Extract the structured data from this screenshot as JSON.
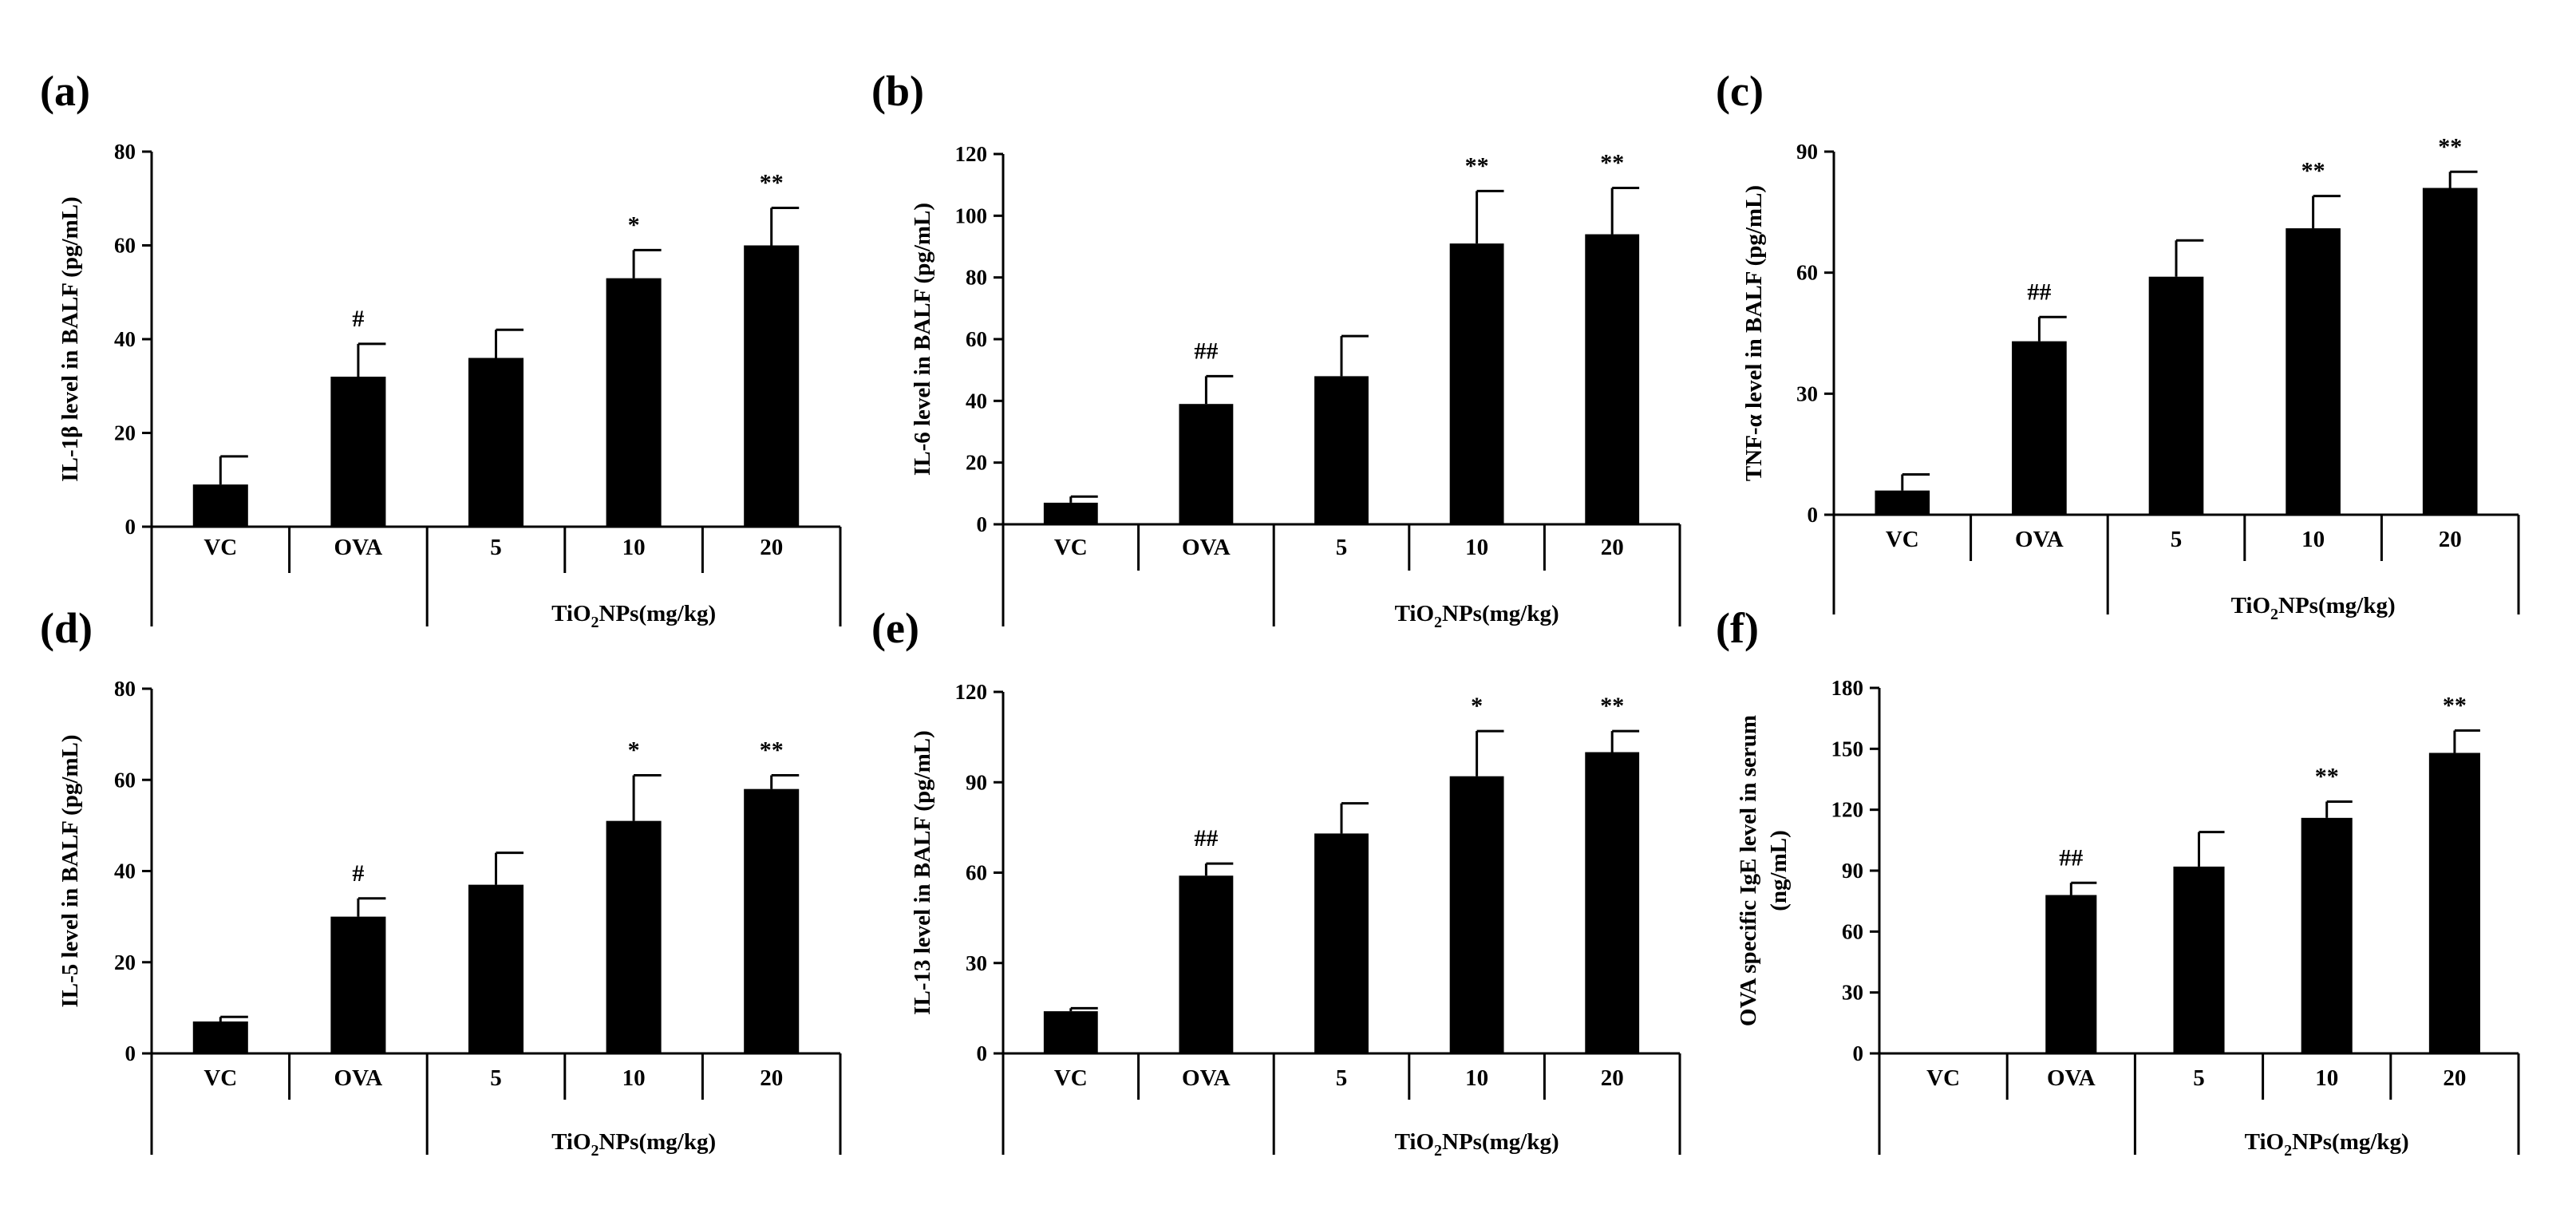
{
  "chart_data": [
    {
      "panel": "(a)",
      "type": "bar",
      "ylabel": "IL-1β level in BALF (pg/mL)",
      "categories": [
        "VC",
        "OVA",
        "5",
        "10",
        "20"
      ],
      "values": [
        9,
        32,
        36,
        53,
        60
      ],
      "errors": [
        6,
        7,
        6,
        6,
        8
      ],
      "significance": [
        "",
        "#",
        "",
        "*",
        "**"
      ],
      "ylim": [
        0,
        80
      ],
      "yticks": [
        0,
        20,
        40,
        60,
        80
      ],
      "group_label": "TiO₂NPs(mg/kg)"
    },
    {
      "panel": "(b)",
      "type": "bar",
      "ylabel": "IL-6 level in BALF (pg/mL)",
      "categories": [
        "VC",
        "OVA",
        "5",
        "10",
        "20"
      ],
      "values": [
        7,
        39,
        48,
        91,
        94
      ],
      "errors": [
        2,
        9,
        13,
        17,
        15
      ],
      "significance": [
        "",
        "##",
        "",
        "**",
        "**"
      ],
      "ylim": [
        0,
        120
      ],
      "yticks": [
        0,
        20,
        40,
        60,
        80,
        100,
        120
      ],
      "group_label": "TiO₂NPs(mg/kg)"
    },
    {
      "panel": "(c)",
      "type": "bar",
      "ylabel": "TNF-α level in BALF (pg/mL)",
      "categories": [
        "VC",
        "OVA",
        "5",
        "10",
        "20"
      ],
      "values": [
        6,
        43,
        59,
        71,
        81
      ],
      "errors": [
        4,
        6,
        9,
        8,
        4
      ],
      "significance": [
        "",
        "##",
        "",
        "**",
        "**"
      ],
      "ylim": [
        0,
        90
      ],
      "yticks": [
        0,
        30,
        60,
        90
      ],
      "group_label": "TiO₂NPs(mg/kg)"
    },
    {
      "panel": "(d)",
      "type": "bar",
      "ylabel": "IL-5 level in BALF (pg/mL)",
      "categories": [
        "VC",
        "OVA",
        "5",
        "10",
        "20"
      ],
      "values": [
        7,
        30,
        37,
        51,
        58
      ],
      "errors": [
        1,
        4,
        7,
        10,
        3
      ],
      "significance": [
        "",
        "#",
        "",
        "*",
        "**"
      ],
      "ylim": [
        0,
        80
      ],
      "yticks": [
        0,
        20,
        40,
        60,
        80
      ],
      "group_label": "TiO₂NPs(mg/kg)"
    },
    {
      "panel": "(e)",
      "type": "bar",
      "ylabel": "IL-13 level in BALF (pg/mL)",
      "categories": [
        "VC",
        "OVA",
        "5",
        "10",
        "20"
      ],
      "values": [
        14,
        59,
        73,
        92,
        100
      ],
      "errors": [
        1,
        4,
        10,
        15,
        7
      ],
      "significance": [
        "",
        "##",
        "",
        "*",
        "**"
      ],
      "ylim": [
        0,
        120
      ],
      "yticks": [
        0,
        30,
        60,
        90,
        120
      ],
      "group_label": "TiO₂NPs(mg/kg)"
    },
    {
      "panel": "(f)",
      "type": "bar",
      "ylabel": "OVA specific IgE level in serum (ng/mL)",
      "ylabel_lines": [
        "OVA specific IgE level in serum",
        "(ng/mL)"
      ],
      "categories": [
        "VC",
        "OVA",
        "5",
        "10",
        "20"
      ],
      "values": [
        0,
        78,
        92,
        116,
        148
      ],
      "errors": [
        0,
        6,
        17,
        8,
        11
      ],
      "significance": [
        "",
        "##",
        "",
        "**",
        "**"
      ],
      "ylim": [
        0,
        180
      ],
      "yticks": [
        0,
        30,
        60,
        90,
        120,
        150,
        180
      ],
      "group_label": "TiO₂NPs(mg/kg)"
    }
  ]
}
